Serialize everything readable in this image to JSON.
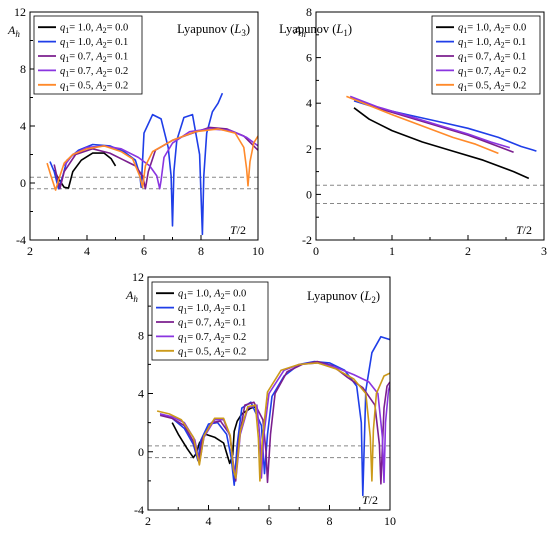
{
  "colors": {
    "black": "#000000",
    "blue": "#1f3ee8",
    "purple": "#7b1f8e",
    "violet": "#8a35e0",
    "orange": "#ff8a2a",
    "gold": "#cc9a1a",
    "ref_line": "#888888"
  },
  "chart_data": [
    {
      "type": "line",
      "title": "Lyapunov (L₃)",
      "xlabel": "T/2",
      "ylabel": "Ah",
      "xlim": [
        2,
        10
      ],
      "ylim": [
        -4,
        12
      ],
      "xticks": [
        "2",
        "4",
        "6",
        "8",
        "10"
      ],
      "yticks": [
        "-4",
        "0",
        "4",
        "8",
        "12"
      ],
      "legend_position": "top-left",
      "reference_lines": [
        0.4,
        -0.4
      ],
      "series": [
        {
          "name": "q1= 1.0, A2= 0.0",
          "color": "#000000",
          "x": [
            2.85,
            3.0,
            3.2,
            3.35,
            3.5,
            3.8,
            4.2,
            4.6,
            4.85,
            5.0
          ],
          "y": [
            0.9,
            0.3,
            -0.3,
            -0.35,
            0.8,
            1.6,
            2.1,
            2.1,
            1.7,
            1.2
          ]
        },
        {
          "name": "q1= 1.0, A2= 0.1",
          "color": "#1f3ee8",
          "x": [
            2.7,
            2.85,
            3.0,
            3.15,
            3.3,
            3.7,
            4.2,
            4.8,
            5.3,
            5.7,
            5.85,
            5.9,
            6.0,
            6.3,
            6.6,
            6.85,
            6.95,
            7.0,
            7.05,
            7.15,
            7.4,
            7.7,
            7.95,
            8.05,
            8.1,
            8.2,
            8.4,
            8.6,
            8.75
          ],
          "y": [
            1.5,
            0.8,
            -0.4,
            0.5,
            1.6,
            2.3,
            2.7,
            2.6,
            2.2,
            1.6,
            0.6,
            -0.3,
            3.5,
            4.8,
            4.5,
            2.5,
            0.5,
            -3.0,
            0.8,
            3.0,
            4.6,
            4.8,
            2.0,
            -3.6,
            0.5,
            3.5,
            5.0,
            5.6,
            6.3
          ]
        },
        {
          "name": "q1= 0.7, A2= 0.1",
          "color": "#7b1f8e",
          "x": [
            2.85,
            2.95,
            3.05,
            3.2,
            3.6,
            4.2,
            4.8,
            5.3,
            5.7,
            5.95,
            6.05,
            6.15,
            6.4,
            7.0,
            7.7,
            8.3,
            8.9,
            9.5,
            9.8,
            10.0
          ],
          "y": [
            1.3,
            0.4,
            -0.4,
            0.8,
            2.0,
            2.4,
            2.1,
            1.6,
            1.2,
            0.5,
            -0.4,
            0.8,
            2.3,
            3.0,
            3.5,
            3.9,
            3.8,
            3.3,
            2.7,
            2.3
          ]
        },
        {
          "name": "q1= 0.7, A2= 0.2",
          "color": "#8a35e0",
          "x": [
            3.2,
            3.5,
            4.0,
            4.6,
            5.2,
            5.8,
            6.2,
            6.45,
            6.55,
            6.6,
            6.7,
            7.0,
            7.6,
            8.3,
            9.0,
            9.6,
            10.0
          ],
          "y": [
            1.2,
            2.0,
            2.5,
            2.6,
            2.4,
            1.8,
            1.2,
            0.5,
            -0.4,
            0.2,
            1.8,
            2.8,
            3.6,
            3.8,
            3.7,
            3.2,
            2.6
          ]
        },
        {
          "name": "q1= 0.5, A2= 0.2",
          "color": "#ff8a2a",
          "x": [
            2.6,
            2.75,
            2.9,
            3.05,
            3.2,
            3.5,
            4.0,
            4.6,
            5.2,
            5.6,
            5.85,
            5.95,
            6.05,
            6.3,
            7.0,
            7.8,
            8.6,
            9.2,
            9.5,
            9.6,
            9.65,
            9.72,
            9.85,
            10.0
          ],
          "y": [
            1.4,
            0.4,
            -0.5,
            0.5,
            1.4,
            2.0,
            2.4,
            2.6,
            2.2,
            1.7,
            0.5,
            -0.3,
            1.2,
            2.2,
            3.0,
            3.6,
            3.8,
            3.5,
            2.5,
            1.0,
            -0.2,
            1.5,
            2.8,
            3.3
          ]
        }
      ]
    },
    {
      "type": "line",
      "title": "Lyapunov (L₁)",
      "xlabel": "T/2",
      "ylabel": "Ah",
      "xlim": [
        0,
        3
      ],
      "ylim": [
        -2,
        8
      ],
      "xticks": [
        "0",
        "1",
        "2",
        "3"
      ],
      "yticks": [
        "-2",
        "0",
        "2",
        "4",
        "6",
        "8"
      ],
      "legend_position": "top-right",
      "reference_lines": [
        0.4,
        -0.4
      ],
      "series": [
        {
          "name": "q1= 1.0, A2= 0.0",
          "color": "#000000",
          "x": [
            0.5,
            0.7,
            1.0,
            1.4,
            1.8,
            2.2,
            2.6,
            2.8
          ],
          "y": [
            3.8,
            3.3,
            2.8,
            2.3,
            1.9,
            1.5,
            1.0,
            0.7
          ]
        },
        {
          "name": "q1= 1.0, A2= 0.1",
          "color": "#1f3ee8",
          "x": [
            0.5,
            0.8,
            1.2,
            1.6,
            2.0,
            2.4,
            2.7,
            2.85,
            2.9
          ],
          "y": [
            4.1,
            3.8,
            3.5,
            3.2,
            2.9,
            2.5,
            2.1,
            1.95,
            1.9
          ]
        },
        {
          "name": "q1= 0.7, A2= 0.1",
          "color": "#7b1f8e",
          "x": [
            0.45,
            0.8,
            1.2,
            1.6,
            2.0,
            2.4,
            2.6
          ],
          "y": [
            4.25,
            3.8,
            3.4,
            3.0,
            2.6,
            2.1,
            1.85
          ]
        },
        {
          "name": "q1= 0.7, A2= 0.2",
          "color": "#8a35e0",
          "x": [
            0.45,
            0.8,
            1.2,
            1.6,
            2.0,
            2.3,
            2.55
          ],
          "y": [
            4.3,
            3.85,
            3.45,
            3.05,
            2.65,
            2.3,
            2.05
          ]
        },
        {
          "name": "q1= 0.5, A2= 0.2",
          "color": "#ff8a2a",
          "x": [
            0.4,
            0.7,
            1.0,
            1.4,
            1.8,
            2.1,
            2.4
          ],
          "y": [
            4.3,
            3.9,
            3.5,
            3.0,
            2.5,
            2.2,
            1.8
          ]
        }
      ]
    },
    {
      "type": "line",
      "title": "Lyapunov (L₂)",
      "xlabel": "T/2",
      "ylabel": "Ah",
      "xlim": [
        2,
        10
      ],
      "ylim": [
        -4,
        12
      ],
      "xticks": [
        "2",
        "4",
        "6",
        "8",
        "10"
      ],
      "yticks": [
        "-4",
        "0",
        "4",
        "8",
        "12"
      ],
      "legend_position": "top-left",
      "reference_lines": [
        0.4,
        -0.4
      ],
      "series": [
        {
          "name": "q1= 1.0, A2= 0.0",
          "color": "#000000",
          "x": [
            2.8,
            3.0,
            3.3,
            3.5,
            3.6,
            3.7,
            3.9,
            4.2,
            4.5,
            4.7,
            4.8,
            4.85,
            4.95,
            5.1,
            5.4,
            5.6
          ],
          "y": [
            2.0,
            1.2,
            0.2,
            -0.4,
            -0.1,
            0.6,
            1.2,
            1.0,
            0.6,
            -0.8,
            -0.2,
            1.4,
            2.1,
            2.6,
            3.0,
            3.1
          ]
        },
        {
          "name": "q1= 1.0, A2= 0.1",
          "color": "#1f3ee8",
          "x": [
            2.4,
            2.8,
            3.2,
            3.5,
            3.65,
            3.75,
            4.0,
            4.3,
            4.6,
            4.75,
            4.85,
            4.95,
            5.1,
            5.4,
            5.75,
            5.85,
            5.95,
            6.1,
            6.5,
            7.0,
            7.5,
            8.0,
            8.5,
            8.9,
            9.05,
            9.1,
            9.2,
            9.4,
            9.7,
            10.0
          ],
          "y": [
            2.6,
            2.3,
            1.6,
            0.5,
            -0.6,
            0.8,
            1.9,
            2.0,
            1.2,
            -0.4,
            -2.3,
            0.5,
            3.0,
            3.4,
            1.8,
            -1.5,
            1.2,
            3.8,
            5.2,
            6.0,
            6.2,
            6.1,
            5.6,
            4.5,
            2.0,
            -3.0,
            4.2,
            6.8,
            7.9,
            7.7
          ]
        },
        {
          "name": "q1= 0.7, A2= 0.1",
          "color": "#7b1f8e",
          "x": [
            2.4,
            2.8,
            3.2,
            3.5,
            3.68,
            3.8,
            4.1,
            4.4,
            4.7,
            4.8,
            4.9,
            5.0,
            5.2,
            5.5,
            5.8,
            5.9,
            5.95,
            6.05,
            6.2,
            6.6,
            7.1,
            7.6,
            8.1,
            8.6,
            9.1,
            9.5,
            9.65,
            9.7,
            9.8,
            9.9,
            10.0
          ],
          "y": [
            2.5,
            2.3,
            1.8,
            0.7,
            -0.7,
            0.9,
            2.0,
            2.1,
            1.2,
            -0.5,
            -2.0,
            0.8,
            3.2,
            3.4,
            2.2,
            0.0,
            -2.1,
            1.2,
            4.0,
            5.5,
            6.0,
            6.2,
            5.9,
            5.1,
            4.4,
            3.2,
            0.5,
            -2.2,
            3.0,
            4.5,
            4.8
          ]
        },
        {
          "name": "q1= 0.7, A2= 0.2",
          "color": "#8a35e0",
          "x": [
            2.4,
            2.8,
            3.2,
            3.55,
            3.7,
            3.85,
            4.2,
            4.5,
            4.72,
            4.82,
            4.92,
            5.05,
            5.3,
            5.6,
            5.7,
            5.75,
            5.82,
            6.0,
            6.5,
            7.0,
            7.6,
            8.2,
            8.8,
            9.3,
            9.6,
            9.75,
            9.8,
            9.85,
            9.95,
            10.0
          ],
          "y": [
            2.6,
            2.4,
            2.0,
            0.8,
            -0.8,
            1.0,
            2.2,
            2.2,
            1.0,
            -1.0,
            -1.6,
            1.2,
            3.0,
            3.2,
            1.0,
            -1.8,
            1.0,
            4.0,
            5.6,
            6.0,
            6.1,
            5.8,
            5.3,
            4.8,
            4.0,
            1.0,
            -2.1,
            2.0,
            4.2,
            4.6
          ]
        },
        {
          "name": "q1= 0.5, A2= 0.2",
          "color": "#cc9a1a",
          "x": [
            2.3,
            2.7,
            3.1,
            3.5,
            3.7,
            3.85,
            4.2,
            4.5,
            4.72,
            4.82,
            4.9,
            5.05,
            5.3,
            5.55,
            5.65,
            5.7,
            5.78,
            5.95,
            6.4,
            7.0,
            7.6,
            8.2,
            8.8,
            9.2,
            9.35,
            9.4,
            9.45,
            9.55,
            9.8,
            10.0
          ],
          "y": [
            2.8,
            2.6,
            2.2,
            1.0,
            -0.9,
            1.1,
            2.3,
            2.3,
            1.1,
            -1.2,
            -1.8,
            1.4,
            3.1,
            3.2,
            0.9,
            -2.0,
            0.8,
            4.1,
            5.6,
            6.0,
            6.1,
            5.7,
            5.0,
            4.0,
            1.0,
            -2.0,
            1.5,
            4.0,
            5.2,
            5.4
          ]
        }
      ]
    }
  ]
}
